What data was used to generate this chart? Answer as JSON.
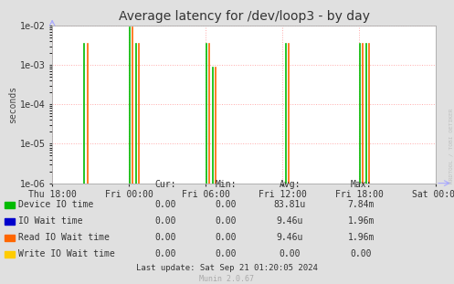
{
  "title": "Average latency for /dev/loop3 - by day",
  "ylabel": "seconds",
  "background_color": "#e0e0e0",
  "plot_background_color": "#ffffff",
  "grid_color": "#ffaaaa",
  "x_tick_labels": [
    "Thu 18:00",
    "Fri 00:00",
    "Fri 06:00",
    "Fri 12:00",
    "Fri 18:00",
    "Sat 00:00"
  ],
  "x_tick_positions": [
    0,
    6,
    12,
    18,
    24,
    30
  ],
  "ylim_min": 1e-06,
  "ylim_max": 0.01,
  "green_spikes": [
    [
      2.5,
      0.0035
    ],
    [
      6.05,
      0.009
    ],
    [
      6.55,
      0.0035
    ],
    [
      12.05,
      0.0035
    ],
    [
      12.55,
      0.00085
    ],
    [
      18.3,
      0.0035
    ],
    [
      24.05,
      0.0035
    ],
    [
      24.55,
      0.0035
    ]
  ],
  "orange_spikes": [
    [
      2.75,
      0.0035
    ],
    [
      6.25,
      0.009
    ],
    [
      6.75,
      0.0035
    ],
    [
      12.25,
      0.0035
    ],
    [
      12.75,
      0.00085
    ],
    [
      18.5,
      0.0035
    ],
    [
      24.25,
      0.0035
    ],
    [
      24.75,
      0.0035
    ]
  ],
  "green_color": "#00bb00",
  "orange_color": "#ff6600",
  "blue_color": "#0000cc",
  "yellow_color": "#ffcc00",
  "legend_entries": [
    {
      "label": "Device IO time",
      "color": "#00bb00"
    },
    {
      "label": "IO Wait time",
      "color": "#0000cc"
    },
    {
      "label": "Read IO Wait time",
      "color": "#ff6600"
    },
    {
      "label": "Write IO Wait time",
      "color": "#ffcc00"
    }
  ],
  "table_cols": [
    "Cur:",
    "Min:",
    "Avg:",
    "Max:"
  ],
  "table_data": [
    [
      "0.00",
      "0.00",
      "83.81u",
      "7.84m"
    ],
    [
      "0.00",
      "0.00",
      "9.46u",
      "1.96m"
    ],
    [
      "0.00",
      "0.00",
      "9.46u",
      "1.96m"
    ],
    [
      "0.00",
      "0.00",
      "0.00",
      "0.00"
    ]
  ],
  "footer": "Last update: Sat Sep 21 01:20:05 2024",
  "munin_label": "Munin 2.0.67",
  "watermark": "RRDTOOL / TOBI OETIKER",
  "title_fontsize": 10,
  "axis_label_fontsize": 7,
  "tick_fontsize": 7,
  "legend_fontsize": 7,
  "footer_fontsize": 6.5
}
